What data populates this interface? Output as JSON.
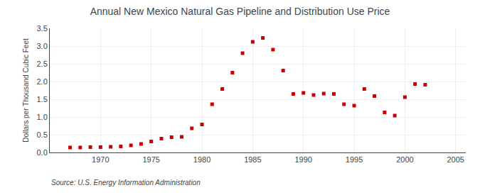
{
  "chart_data": {
    "type": "scatter",
    "title": "Annual New Mexico Natural Gas Pipeline and Distribution Use Price",
    "ylabel": "Dollars per Thousand Cubic Feet",
    "annotations": [
      "Source: U.S. Energy Information Administration"
    ],
    "color": "#cc0000",
    "marker": "square",
    "grid": true,
    "xlim": [
      1965,
      2006
    ],
    "ylim": [
      0.0,
      3.5
    ],
    "xticks": [
      1970,
      1975,
      1980,
      1985,
      1990,
      1995,
      2000,
      2005
    ],
    "yticks": [
      {
        "value": 0,
        "label": "0.0"
      },
      0.5,
      {
        "value": 1,
        "label": "1.0"
      },
      1.5,
      {
        "value": 2,
        "label": "2.0"
      },
      2.5,
      {
        "value": 3,
        "label": "3.0"
      },
      3.5
    ],
    "x": [
      1967,
      1968,
      1969,
      1970,
      1971,
      1972,
      1973,
      1974,
      1975,
      1976,
      1977,
      1978,
      1979,
      1980,
      1981,
      1982,
      1983,
      1984,
      1985,
      1986,
      1987,
      1988,
      1989,
      1990,
      1991,
      1992,
      1993,
      1994,
      1995,
      1996,
      1997,
      1998,
      1999,
      2000,
      2001,
      2002
    ],
    "values": [
      0.14,
      0.14,
      0.15,
      0.15,
      0.16,
      0.17,
      0.2,
      0.24,
      0.31,
      0.39,
      0.43,
      0.44,
      0.68,
      0.79,
      1.36,
      1.79,
      2.25,
      2.8,
      3.12,
      3.23,
      2.9,
      2.31,
      1.65,
      1.68,
      1.62,
      1.66,
      1.65,
      1.36,
      1.32,
      1.79,
      1.59,
      1.13,
      1.04,
      1.56,
      1.93,
      1.91
    ]
  }
}
